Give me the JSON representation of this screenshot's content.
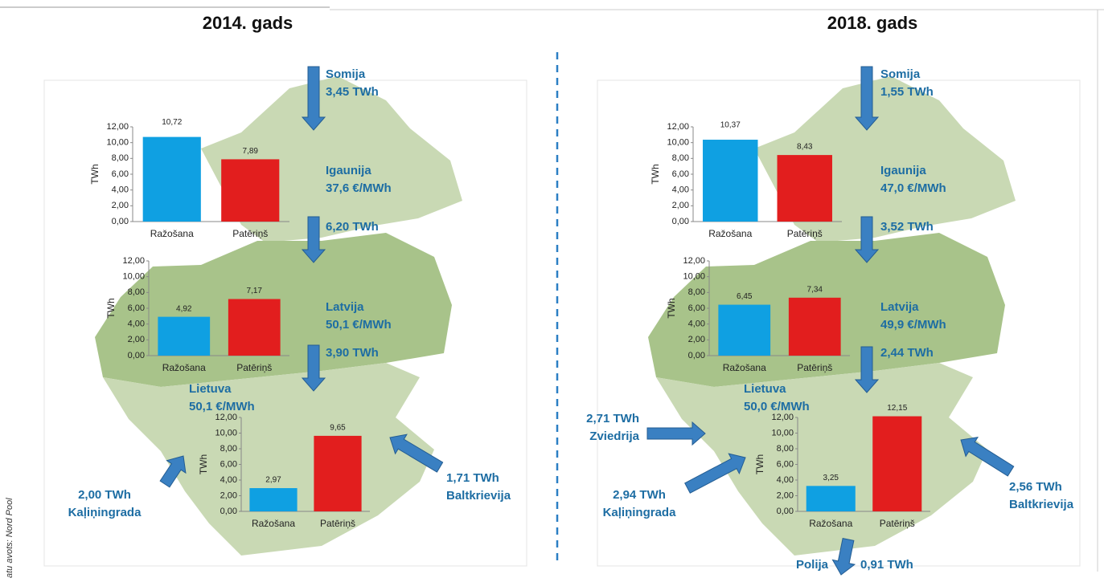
{
  "source": "atu avots: Nord Pool",
  "panels": [
    {
      "title": "2014. gads",
      "labels": [
        [
          "Somija",
          "3,45 TWh"
        ],
        [
          "Igaunija",
          "37,6 €/MWh"
        ],
        [
          "6,20 TWh"
        ],
        [
          "Latvija",
          "50,1 €/MWh"
        ],
        [
          "3,90 TWh"
        ],
        [
          "Lietuva",
          "50,1 €/MWh"
        ],
        [
          "2,00 TWh",
          "Kaļiņingrada"
        ],
        [
          "1,71 TWh",
          "Baltkrievija"
        ]
      ]
    },
    {
      "title": "2018. gads",
      "labels": [
        [
          "Somija",
          "1,55 TWh"
        ],
        [
          "Igaunija",
          "47,0 €/MWh"
        ],
        [
          "3,52 TWh"
        ],
        [
          "Latvija",
          "49,9 €/MWh"
        ],
        [
          "2,44 TWh"
        ],
        [
          "Lietuva",
          "50,0 €/MWh"
        ],
        [
          "2,94 TWh",
          "Kaļiņingrada"
        ],
        [
          "2,56 TWh",
          "Baltkrievija"
        ],
        [
          "2,71 TWh",
          "Zviedrija"
        ],
        [
          "Polija"
        ],
        [
          "0,91 TWh"
        ]
      ]
    }
  ],
  "chart_data": [
    {
      "type": "bar",
      "y_label": "TWh",
      "categories": [
        "Ražošana",
        "Patēriņš"
      ],
      "values": [
        10.72,
        7.89
      ],
      "value_labels": [
        "10,72",
        "7,89"
      ],
      "colors": [
        "#0fa0e2",
        "#e21e1e"
      ],
      "ylim": [
        0,
        12
      ],
      "yticks": [
        {
          "value": 0,
          "label": "0,00"
        },
        {
          "value": 2,
          "label": "2,00"
        },
        {
          "value": 4,
          "label": "4,00"
        },
        {
          "value": 6,
          "label": "6,00"
        },
        {
          "value": 8,
          "label": "8,00"
        },
        {
          "value": 10,
          "label": "10,00"
        },
        {
          "value": 12,
          "label": "12,00"
        }
      ]
    },
    {
      "type": "bar",
      "y_label": "TWh",
      "categories": [
        "Ražošana",
        "Patēriņš"
      ],
      "values": [
        4.92,
        7.17
      ],
      "value_labels": [
        "4,92",
        "7,17"
      ],
      "colors": [
        "#0fa0e2",
        "#e21e1e"
      ],
      "ylim": [
        0,
        12
      ],
      "yticks": [
        {
          "value": 0,
          "label": "0,00"
        },
        {
          "value": 2,
          "label": "2,00"
        },
        {
          "value": 4,
          "label": "4,00"
        },
        {
          "value": 6,
          "label": "6,00"
        },
        {
          "value": 8,
          "label": "8,00"
        },
        {
          "value": 10,
          "label": "10,00"
        },
        {
          "value": 12,
          "label": "12,00"
        }
      ]
    },
    {
      "type": "bar",
      "y_label": "TWh",
      "categories": [
        "Ražošana",
        "Patēriņš"
      ],
      "values": [
        2.97,
        9.65
      ],
      "value_labels": [
        "2,97",
        "9,65"
      ],
      "colors": [
        "#0fa0e2",
        "#e21e1e"
      ],
      "ylim": [
        0,
        12
      ],
      "yticks": [
        {
          "value": 0,
          "label": "0,00"
        },
        {
          "value": 2,
          "label": "2,00"
        },
        {
          "value": 4,
          "label": "4,00"
        },
        {
          "value": 6,
          "label": "6,00"
        },
        {
          "value": 8,
          "label": "8,00"
        },
        {
          "value": 10,
          "label": "10,00"
        },
        {
          "value": 12,
          "label": "12,00"
        }
      ]
    },
    {
      "type": "bar",
      "y_label": "TWh",
      "categories": [
        "Ražošana",
        "Patēriņš"
      ],
      "values": [
        10.37,
        8.43
      ],
      "value_labels": [
        "10,37",
        "8,43"
      ],
      "colors": [
        "#0fa0e2",
        "#e21e1e"
      ],
      "ylim": [
        0,
        12
      ],
      "yticks": [
        {
          "value": 0,
          "label": "0,00"
        },
        {
          "value": 2,
          "label": "2,00"
        },
        {
          "value": 4,
          "label": "4,00"
        },
        {
          "value": 6,
          "label": "6,00"
        },
        {
          "value": 8,
          "label": "8,00"
        },
        {
          "value": 10,
          "label": "10,00"
        },
        {
          "value": 12,
          "label": "12,00"
        }
      ]
    },
    {
      "type": "bar",
      "y_label": "TWh",
      "categories": [
        "Ražošana",
        "Patēriņš"
      ],
      "values": [
        6.45,
        7.34
      ],
      "value_labels": [
        "6,45",
        "7,34"
      ],
      "colors": [
        "#0fa0e2",
        "#e21e1e"
      ],
      "ylim": [
        0,
        12
      ],
      "yticks": [
        {
          "value": 0,
          "label": "0,00"
        },
        {
          "value": 2,
          "label": "2,00"
        },
        {
          "value": 4,
          "label": "4,00"
        },
        {
          "value": 6,
          "label": "6,00"
        },
        {
          "value": 8,
          "label": "8,00"
        },
        {
          "value": 10,
          "label": "10,00"
        },
        {
          "value": 12,
          "label": "12,00"
        }
      ]
    },
    {
      "type": "bar",
      "y_label": "TWh",
      "categories": [
        "Ražošana",
        "Patēriņš"
      ],
      "values": [
        3.25,
        12.15
      ],
      "value_labels": [
        "3,25",
        "12,15"
      ],
      "colors": [
        "#0fa0e2",
        "#e21e1e"
      ],
      "ylim": [
        0,
        12
      ],
      "yticks": [
        {
          "value": 0,
          "label": "0,00"
        },
        {
          "value": 2,
          "label": "2,00"
        },
        {
          "value": 4,
          "label": "4,00"
        },
        {
          "value": 6,
          "label": "6,00"
        },
        {
          "value": 8,
          "label": "8,00"
        },
        {
          "value": 10,
          "label": "10,00"
        },
        {
          "value": 12,
          "label": "12,00"
        }
      ]
    }
  ]
}
